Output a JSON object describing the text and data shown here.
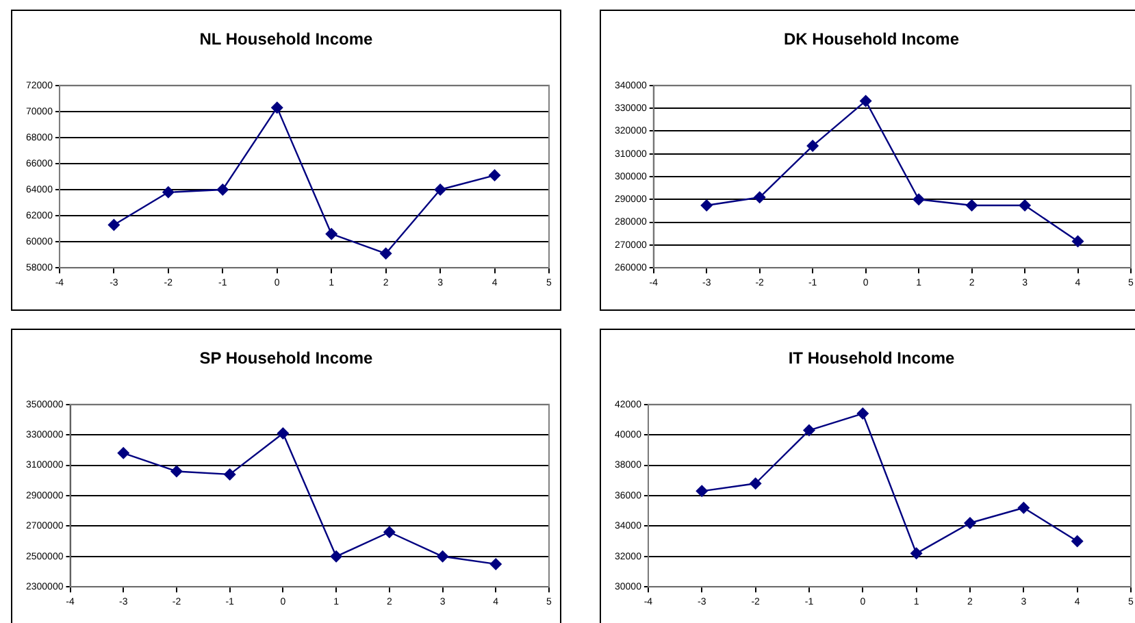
{
  "chart_data": [
    {
      "type": "line",
      "title": "NL Household Income",
      "x": [
        -3,
        -2,
        -1,
        0,
        1,
        2,
        3,
        4
      ],
      "series": [
        {
          "color": "#000080",
          "values": [
            61300,
            63800,
            64000,
            70300,
            60600,
            59100,
            64000,
            65100
          ]
        }
      ],
      "xlim": [
        -4,
        5
      ],
      "xticks": [
        -4,
        -3,
        -2,
        -1,
        0,
        1,
        2,
        3,
        4,
        5
      ],
      "ylim": [
        58000,
        72000
      ],
      "yticks": [
        58000,
        60000,
        62000,
        64000,
        66000,
        68000,
        70000,
        72000
      ],
      "grid": "y",
      "legend": false,
      "marker": "diamond",
      "line_style": "solid"
    },
    {
      "type": "line",
      "title": "DK Household Income",
      "x": [
        -3,
        -2,
        -1,
        0,
        1,
        2,
        3,
        4
      ],
      "series": [
        {
          "color": "#000080",
          "values": [
            287400,
            290900,
            313500,
            333200,
            290000,
            287400,
            287400,
            271600
          ]
        }
      ],
      "xlim": [
        -4,
        5
      ],
      "xticks": [
        -4,
        -3,
        -2,
        -1,
        0,
        1,
        2,
        3,
        4,
        5
      ],
      "ylim": [
        260000,
        340000
      ],
      "yticks": [
        260000,
        270000,
        280000,
        290000,
        300000,
        310000,
        320000,
        330000,
        340000
      ],
      "grid": "y",
      "legend": false,
      "marker": "diamond",
      "line_style": "solid"
    },
    {
      "type": "line",
      "title": "SP Household Income",
      "x": [
        -3,
        -2,
        -1,
        0,
        1,
        2,
        3,
        4
      ],
      "series": [
        {
          "color": "#000080",
          "values": [
            3180000,
            3060000,
            3040000,
            3310000,
            2500000,
            2660000,
            2500000,
            2450000
          ]
        }
      ],
      "xlim": [
        -4,
        5
      ],
      "xticks": [
        -4,
        -3,
        -2,
        -1,
        0,
        1,
        2,
        3,
        4,
        5
      ],
      "ylim": [
        2300000,
        3500000
      ],
      "yticks": [
        2300000,
        2500000,
        2700000,
        2900000,
        3100000,
        3300000,
        3500000
      ],
      "grid": "y",
      "legend": false,
      "marker": "diamond",
      "line_style": "solid"
    },
    {
      "type": "line",
      "title": "IT Household Income",
      "x": [
        -3,
        -2,
        -1,
        0,
        1,
        2,
        3,
        4
      ],
      "series": [
        {
          "color": "#000080",
          "values": [
            36300,
            36800,
            40300,
            41400,
            32200,
            34200,
            35200,
            33000
          ]
        }
      ],
      "xlim": [
        -4,
        5
      ],
      "xticks": [
        -4,
        -3,
        -2,
        -1,
        0,
        1,
        2,
        3,
        4,
        5
      ],
      "ylim": [
        30000,
        42000
      ],
      "yticks": [
        30000,
        32000,
        34000,
        36000,
        38000,
        40000,
        42000
      ],
      "grid": "y",
      "legend": false,
      "marker": "diamond",
      "line_style": "solid"
    }
  ]
}
